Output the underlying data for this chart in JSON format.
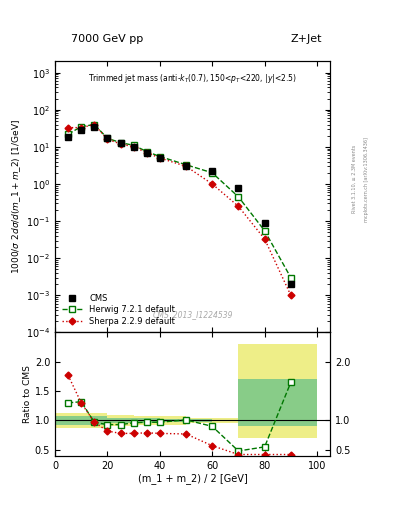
{
  "title_main": "7000 GeV pp",
  "title_right": "Z+Jet",
  "watermark": "CMS_2013_I1224539",
  "xlabel": "(m_1 + m_2) / 2 [GeV]",
  "ylabel_main": "1000/σ 2dσ/d(m_1 + m_2) [1/GeV]",
  "ylabel_ratio": "Ratio to CMS",
  "right_label1": "Rivet 3.1.10, ≥ 2.3M events",
  "right_label2": "mcplots.cern.ch [arXiv:1306.3436]",
  "cms_x": [
    5,
    10,
    15,
    20,
    25,
    30,
    35,
    40,
    50,
    60,
    70,
    80,
    90
  ],
  "cms_y": [
    18,
    28,
    35,
    17,
    13,
    10,
    7,
    5,
    3,
    2.2,
    0.8,
    0.09,
    0.002
  ],
  "herwig_x": [
    5,
    10,
    15,
    20,
    25,
    30,
    35,
    40,
    50,
    60,
    70,
    80,
    90
  ],
  "herwig_y": [
    22,
    35,
    40,
    17,
    13,
    11,
    7.5,
    5.5,
    3.3,
    2.0,
    0.45,
    0.055,
    0.003
  ],
  "sherpa_x": [
    5,
    10,
    15,
    20,
    25,
    30,
    35,
    40,
    50,
    60,
    70,
    80,
    90
  ],
  "sherpa_y": [
    33,
    33,
    40,
    16,
    12,
    10,
    7,
    5,
    3,
    1.0,
    0.25,
    0.033,
    0.001
  ],
  "herwig_ratio_x": [
    5,
    10,
    15,
    20,
    25,
    30,
    35,
    40,
    50,
    60,
    70,
    80,
    90
  ],
  "herwig_ratio_y": [
    1.3,
    1.32,
    0.97,
    0.93,
    0.93,
    0.96,
    0.97,
    0.97,
    1.01,
    0.9,
    0.48,
    0.55,
    1.65
  ],
  "sherpa_ratio_x": [
    5,
    10,
    15,
    20,
    25,
    30,
    35,
    40,
    50,
    60,
    70,
    80,
    90
  ],
  "sherpa_ratio_y": [
    1.77,
    1.3,
    0.97,
    0.82,
    0.78,
    0.78,
    0.79,
    0.78,
    0.77,
    0.57,
    0.42,
    0.42,
    0.42
  ],
  "band_edges": [
    0,
    10,
    20,
    30,
    40,
    50,
    60,
    70,
    80,
    100
  ],
  "band_yellow_lo": [
    0.88,
    0.88,
    0.9,
    0.92,
    0.93,
    0.95,
    0.96,
    0.7,
    0.7,
    0.7
  ],
  "band_yellow_hi": [
    1.12,
    1.12,
    1.1,
    1.08,
    1.07,
    1.05,
    1.04,
    2.3,
    2.3,
    2.3
  ],
  "band_green_lo": [
    0.93,
    0.93,
    0.95,
    0.96,
    0.97,
    0.98,
    0.99,
    0.9,
    0.9,
    0.9
  ],
  "band_green_hi": [
    1.07,
    1.07,
    1.05,
    1.04,
    1.03,
    1.02,
    1.01,
    1.7,
    1.7,
    1.7
  ],
  "ylim_main": [
    0.0001,
    2000
  ],
  "ylim_ratio": [
    0.4,
    2.5
  ],
  "xlim": [
    0,
    105
  ],
  "cms_color": "black",
  "herwig_color": "#007700",
  "sherpa_color": "#cc0000",
  "band_yellow_color": "#eeee88",
  "band_green_color": "#88cc88"
}
